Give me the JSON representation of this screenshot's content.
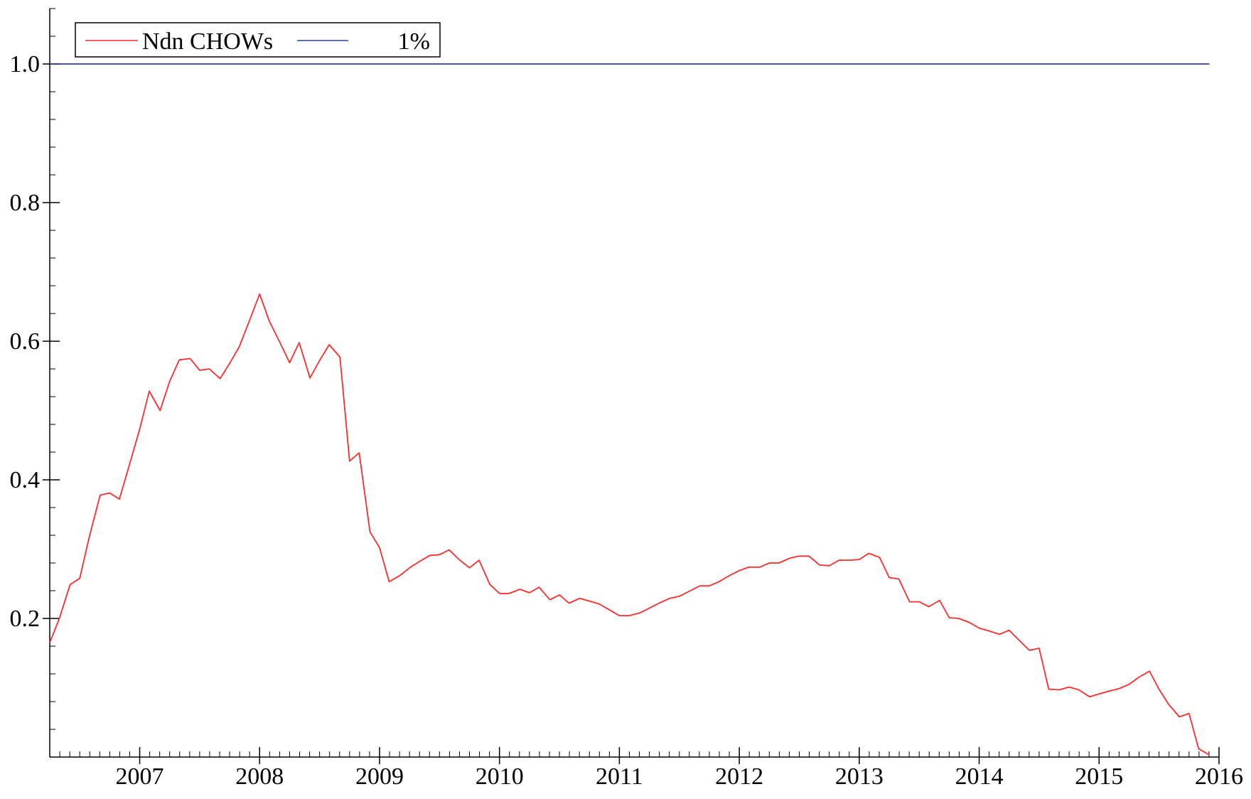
{
  "chart_data": {
    "type": "line",
    "title": "",
    "xlabel": "",
    "ylabel": "",
    "xlim": [
      2006.25,
      2016.0
    ],
    "ylim": [
      0.0,
      1.08
    ],
    "grid": false,
    "legend_position": "top-left",
    "x_ticks": [
      2007,
      2008,
      2009,
      2010,
      2011,
      2012,
      2013,
      2014,
      2015,
      2016
    ],
    "x_tick_labels": [
      "2007",
      "2008",
      "2009",
      "2010",
      "2011",
      "2012",
      "2013",
      "2014",
      "2015",
      "2016"
    ],
    "y_ticks": [
      0.2,
      0.4,
      0.6,
      0.8,
      1.0
    ],
    "y_tick_labels": [
      "0.2",
      "0.4",
      "0.6",
      "0.8",
      "1.0"
    ],
    "series": [
      {
        "name": "Ndn CHOWs",
        "color": "#ff2a2a",
        "x": [
          2006.25,
          2006.33,
          2006.42,
          2006.5,
          2006.58,
          2006.67,
          2006.75,
          2006.83,
          2006.92,
          2007.0,
          2007.08,
          2007.17,
          2007.25,
          2007.33,
          2007.42,
          2007.5,
          2007.58,
          2007.67,
          2007.75,
          2007.83,
          2007.92,
          2008.0,
          2008.08,
          2008.17,
          2008.25,
          2008.33,
          2008.42,
          2008.5,
          2008.58,
          2008.67,
          2008.75,
          2008.83,
          2008.92,
          2009.0,
          2009.08,
          2009.17,
          2009.25,
          2009.33,
          2009.42,
          2009.5,
          2009.58,
          2009.67,
          2009.75,
          2009.83,
          2009.92,
          2010.0,
          2010.08,
          2010.17,
          2010.25,
          2010.33,
          2010.42,
          2010.5,
          2010.58,
          2010.67,
          2010.75,
          2010.83,
          2010.92,
          2011.0,
          2011.08,
          2011.17,
          2011.25,
          2011.33,
          2011.42,
          2011.5,
          2011.58,
          2011.67,
          2011.75,
          2011.83,
          2011.92,
          2012.0,
          2012.08,
          2012.17,
          2012.25,
          2012.33,
          2012.42,
          2012.5,
          2012.58,
          2012.67,
          2012.75,
          2012.83,
          2012.92,
          2013.0,
          2013.08,
          2013.17,
          2013.25,
          2013.33,
          2013.42,
          2013.5,
          2013.58,
          2013.67,
          2013.75,
          2013.83,
          2013.92,
          2014.0,
          2014.08,
          2014.17,
          2014.25,
          2014.33,
          2014.42,
          2014.5,
          2014.58,
          2014.67,
          2014.75,
          2014.83,
          2014.92,
          2015.0,
          2015.08,
          2015.17,
          2015.25,
          2015.33,
          2015.42,
          2015.5,
          2015.58,
          2015.67,
          2015.75,
          2015.83,
          2015.92
        ],
        "y": [
          0.165,
          0.2,
          0.249,
          0.258,
          0.318,
          0.378,
          0.381,
          0.372,
          0.425,
          0.473,
          0.528,
          0.5,
          0.542,
          0.573,
          0.575,
          0.558,
          0.56,
          0.546,
          0.568,
          0.592,
          0.632,
          0.668,
          0.629,
          0.598,
          0.569,
          0.598,
          0.547,
          0.572,
          0.595,
          0.577,
          0.427,
          0.439,
          0.325,
          0.302,
          0.253,
          0.262,
          0.273,
          0.282,
          0.291,
          0.292,
          0.299,
          0.284,
          0.273,
          0.284,
          0.249,
          0.236,
          0.236,
          0.242,
          0.237,
          0.245,
          0.227,
          0.234,
          0.222,
          0.229,
          0.225,
          0.221,
          0.212,
          0.204,
          0.204,
          0.208,
          0.215,
          0.222,
          0.229,
          0.232,
          0.239,
          0.247,
          0.247,
          0.253,
          0.262,
          0.269,
          0.274,
          0.274,
          0.28,
          0.28,
          0.287,
          0.29,
          0.29,
          0.277,
          0.276,
          0.284,
          0.284,
          0.285,
          0.294,
          0.288,
          0.259,
          0.257,
          0.224,
          0.224,
          0.217,
          0.226,
          0.201,
          0.2,
          0.194,
          0.186,
          0.182,
          0.177,
          0.183,
          0.169,
          0.154,
          0.157,
          0.098,
          0.097,
          0.101,
          0.097,
          0.087,
          0.091,
          0.095,
          0.099,
          0.105,
          0.115,
          0.124,
          0.098,
          0.076,
          0.058,
          0.063,
          0.012,
          0.003
        ]
      },
      {
        "name": "1%",
        "color": "#2a3f9c",
        "x": [
          2006.25,
          2015.92
        ],
        "y": [
          1.0,
          1.0
        ]
      }
    ]
  }
}
